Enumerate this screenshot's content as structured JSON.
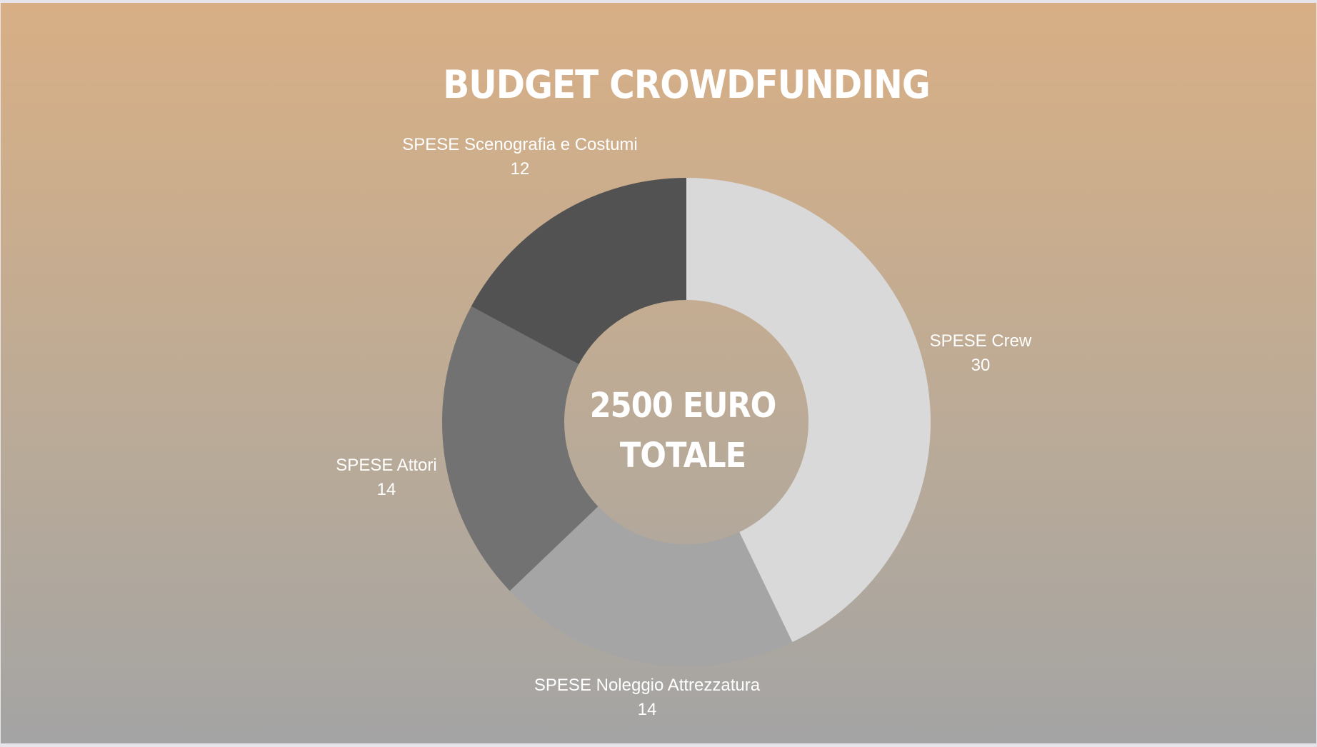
{
  "chart_data": {
    "type": "pie",
    "title": "BUDGET CROWDFUNDING",
    "center_text": [
      "2500 EURO",
      "TOTALE"
    ],
    "donut": true,
    "slices": [
      {
        "name": "SPESE Crew",
        "value": 30,
        "color": "#d9d9d9"
      },
      {
        "name": "SPESE Noleggio Attrezzatura",
        "value": 14,
        "color": "#a5a5a5"
      },
      {
        "name": "SPESE Attori",
        "value": 14,
        "color": "#727272"
      },
      {
        "name": "SPESE Scenografia e Costumi",
        "value": 12,
        "color": "#525252"
      }
    ],
    "label_text_color": "#ffffff"
  }
}
